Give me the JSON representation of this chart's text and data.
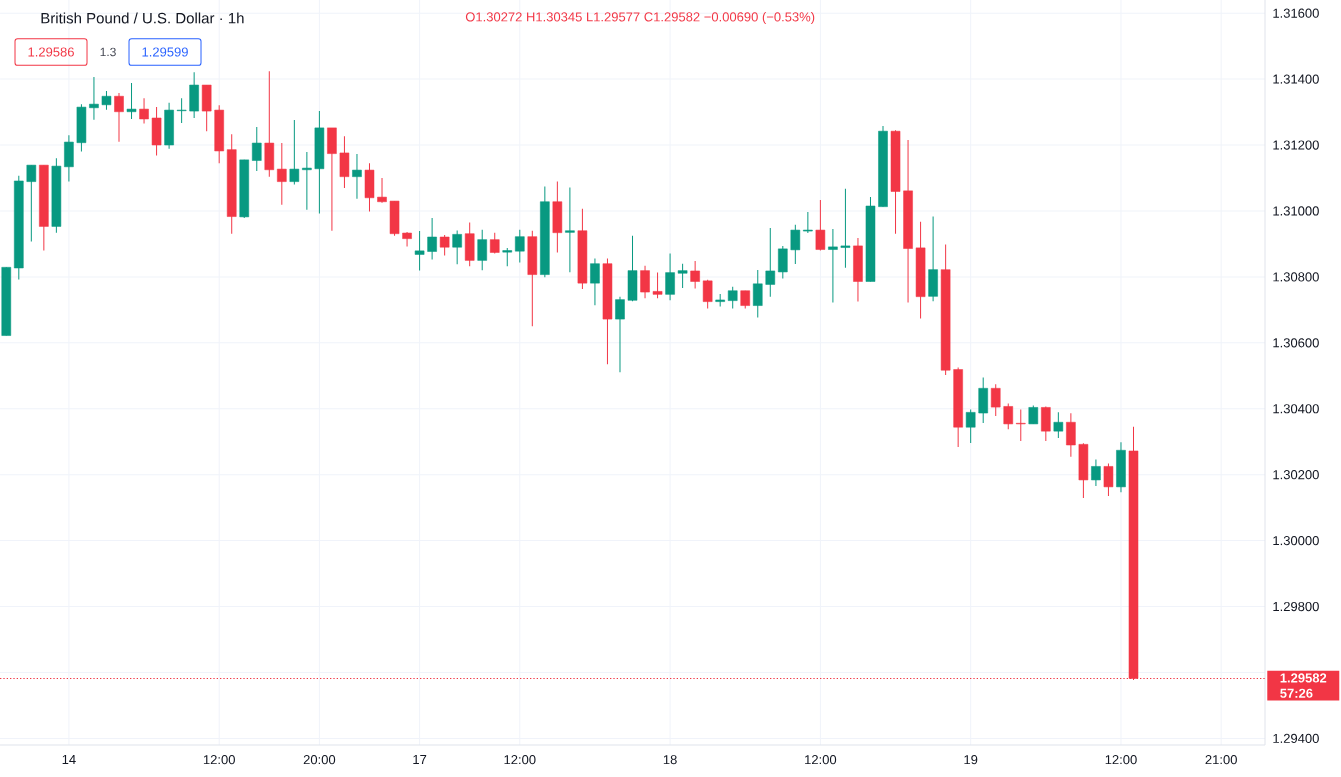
{
  "chart_data": {
    "type": "candlestick",
    "title": "British Pound / U.S. Dollar · 1h",
    "annotations": [
      "O1.30272 H1.30345 L1.29577 C1.29582 −0.00690 (−0.53%)",
      "1.29586",
      "1.3",
      "1.29599",
      "57:26"
    ],
    "categories": [
      null,
      null,
      null,
      null,
      null,
      "14",
      null,
      null,
      null,
      null,
      null,
      null,
      null,
      null,
      null,
      null,
      null,
      "12:00",
      null,
      null,
      null,
      null,
      null,
      null,
      null,
      "20:00",
      null,
      null,
      null,
      null,
      null,
      null,
      null,
      "17",
      null,
      null,
      null,
      null,
      null,
      null,
      null,
      "12:00",
      null,
      null,
      null,
      null,
      null,
      null,
      null,
      null,
      null,
      null,
      null,
      "18",
      null,
      null,
      null,
      null,
      null,
      null,
      null,
      null,
      null,
      null,
      null,
      "12:00",
      null,
      null,
      null,
      null,
      null,
      null,
      null,
      null,
      null,
      null,
      null,
      "19",
      null,
      null,
      null,
      null,
      null,
      null,
      null,
      null,
      null,
      null,
      null,
      "12:00",
      null,
      null,
      null,
      null,
      null,
      null,
      null,
      "21:00",
      null,
      null,
      null
    ],
    "ohlc": [
      [
        1.30622,
        1.30829,
        1.30622,
        1.30829
      ],
      [
        1.30827,
        1.31107,
        1.30792,
        1.31091
      ],
      [
        1.31089,
        1.31139,
        1.30907,
        1.31139
      ],
      [
        1.31139,
        1.31139,
        1.3088,
        1.30953
      ],
      [
        1.30953,
        1.3116,
        1.30934,
        1.31136
      ],
      [
        1.31134,
        1.3123,
        1.31089,
        1.31209
      ],
      [
        1.31207,
        1.31324,
        1.3118,
        1.31315
      ],
      [
        1.31313,
        1.31406,
        1.31277,
        1.31324
      ],
      [
        1.31322,
        1.31364,
        1.31307,
        1.31348
      ],
      [
        1.31348,
        1.31358,
        1.3121,
        1.31301
      ],
      [
        1.31301,
        1.31388,
        1.31279,
        1.31309
      ],
      [
        1.31309,
        1.31342,
        1.31265,
        1.31279
      ],
      [
        1.31282,
        1.31315,
        1.31168,
        1.312
      ],
      [
        1.312,
        1.31328,
        1.31189,
        1.31306
      ],
      [
        1.31304,
        1.31342,
        1.31267,
        1.31306
      ],
      [
        1.31303,
        1.31421,
        1.31282,
        1.31382
      ],
      [
        1.31382,
        1.31382,
        1.31242,
        1.31303
      ],
      [
        1.31306,
        1.31321,
        1.31145,
        1.31182
      ],
      [
        1.31186,
        1.31233,
        1.30931,
        1.30983
      ],
      [
        1.30982,
        1.31155,
        1.30979,
        1.31155
      ],
      [
        1.31153,
        1.31255,
        1.31121,
        1.31206
      ],
      [
        1.31206,
        1.31424,
        1.31104,
        1.31125
      ],
      [
        1.31127,
        1.31206,
        1.31019,
        1.31089
      ],
      [
        1.31089,
        1.31276,
        1.3108,
        1.31127
      ],
      [
        1.31125,
        1.31179,
        1.31004,
        1.3113
      ],
      [
        1.31128,
        1.31303,
        1.30992,
        1.31252
      ],
      [
        1.31252,
        1.31252,
        1.3094,
        1.31174
      ],
      [
        1.31176,
        1.31227,
        1.3107,
        1.31104
      ],
      [
        1.31104,
        1.31173,
        1.31037,
        1.31124
      ],
      [
        1.31124,
        1.31145,
        1.30998,
        1.3104
      ],
      [
        1.31042,
        1.311,
        1.31025,
        1.31028
      ],
      [
        1.3103,
        1.3103,
        1.30925,
        1.30931
      ],
      [
        1.30933,
        1.30936,
        1.30892,
        1.30916
      ],
      [
        1.30868,
        1.30939,
        1.30819,
        1.30879
      ],
      [
        1.30877,
        1.30979,
        1.30853,
        1.30921
      ],
      [
        1.30921,
        1.30927,
        1.30865,
        1.3089
      ],
      [
        1.3089,
        1.30941,
        1.30838,
        1.30929
      ],
      [
        1.30931,
        1.30965,
        1.30832,
        1.3085
      ],
      [
        1.3085,
        1.30943,
        1.3082,
        1.30913
      ],
      [
        1.30913,
        1.30934,
        1.30871,
        1.30874
      ],
      [
        1.30875,
        1.30888,
        1.30832,
        1.3088
      ],
      [
        1.30878,
        1.30943,
        1.30844,
        1.30922
      ],
      [
        1.30922,
        1.3094,
        1.3065,
        1.30807
      ],
      [
        1.30807,
        1.31074,
        1.30799,
        1.31028
      ],
      [
        1.31028,
        1.31089,
        1.30874,
        1.30934
      ],
      [
        1.30935,
        1.31071,
        1.30814,
        1.3094
      ],
      [
        1.3094,
        1.31007,
        1.30763,
        1.30781
      ],
      [
        1.30781,
        1.30856,
        1.30714,
        1.3084
      ],
      [
        1.3084,
        1.30856,
        1.30535,
        1.30672
      ],
      [
        1.30672,
        1.3074,
        1.30511,
        1.30731
      ],
      [
        1.30729,
        1.30925,
        1.30726,
        1.30819
      ],
      [
        1.30819,
        1.30834,
        1.30735,
        1.30754
      ],
      [
        1.30756,
        1.30813,
        1.30735,
        1.30747
      ],
      [
        1.30747,
        1.30871,
        1.30729,
        1.30813
      ],
      [
        1.30811,
        1.3084,
        1.30766,
        1.30819
      ],
      [
        1.30818,
        1.30848,
        1.30765,
        1.30786
      ],
      [
        1.30788,
        1.30791,
        1.30704,
        1.30725
      ],
      [
        1.30725,
        1.30748,
        1.3071,
        1.3073
      ],
      [
        1.30728,
        1.3077,
        1.30704,
        1.30758
      ],
      [
        1.30758,
        1.30758,
        1.30704,
        1.30713
      ],
      [
        1.30713,
        1.30821,
        1.30677,
        1.30779
      ],
      [
        1.30777,
        1.30948,
        1.3074,
        1.30818
      ],
      [
        1.30815,
        1.30894,
        1.30795,
        1.30885
      ],
      [
        1.30882,
        1.30958,
        1.30839,
        1.30942
      ],
      [
        1.30939,
        1.30997,
        1.30933,
        1.30942
      ],
      [
        1.30942,
        1.31033,
        1.3088,
        1.30883
      ],
      [
        1.30883,
        1.30945,
        1.30722,
        1.30891
      ],
      [
        1.30889,
        1.31067,
        1.30828,
        1.30894
      ],
      [
        1.30894,
        1.30918,
        1.30725,
        1.30786
      ],
      [
        1.30786,
        1.31042,
        1.30786,
        1.31015
      ],
      [
        1.31013,
        1.31258,
        1.31013,
        1.31242
      ],
      [
        1.31242,
        1.31245,
        1.30931,
        1.31059
      ],
      [
        1.31061,
        1.31215,
        1.30722,
        1.30886
      ],
      [
        1.30888,
        1.30967,
        1.30674,
        1.3074
      ],
      [
        1.30741,
        1.30983,
        1.30726,
        1.30822
      ],
      [
        1.30822,
        1.30898,
        1.30502,
        1.30517
      ],
      [
        1.30519,
        1.30525,
        1.30284,
        1.30344
      ],
      [
        1.30344,
        1.30398,
        1.30296,
        1.30389
      ],
      [
        1.30387,
        1.30495,
        1.30357,
        1.30462
      ],
      [
        1.30462,
        1.30474,
        1.30378,
        1.30405
      ],
      [
        1.30407,
        1.30416,
        1.30338,
        1.30354
      ],
      [
        1.30356,
        1.30398,
        1.30302,
        1.30354
      ],
      [
        1.30354,
        1.3041,
        1.30354,
        1.30404
      ],
      [
        1.30404,
        1.30407,
        1.30302,
        1.30332
      ],
      [
        1.30332,
        1.30389,
        1.30311,
        1.30359
      ],
      [
        1.30359,
        1.30386,
        1.30254,
        1.3029
      ],
      [
        1.30292,
        1.30295,
        1.30129,
        1.30184
      ],
      [
        1.30184,
        1.30246,
        1.30166,
        1.30225
      ],
      [
        1.30225,
        1.30234,
        1.30135,
        1.30163
      ],
      [
        1.30163,
        1.30298,
        1.30147,
        1.30274
      ],
      [
        1.30272,
        1.30345,
        1.29577,
        1.29582
      ],
      null,
      null,
      null,
      null,
      null,
      null,
      null,
      null,
      null,
      null
    ],
    "colors": [
      "#089981",
      "#089981",
      "#089981",
      "#f23645",
      "#089981",
      "#089981",
      "#089981",
      "#089981",
      "#089981",
      "#f23645",
      "#089981",
      "#f23645",
      "#f23645",
      "#089981",
      "#089981",
      "#089981",
      "#f23645",
      "#f23645",
      "#f23645",
      "#089981",
      "#089981",
      "#f23645",
      "#f23645",
      "#089981",
      "#089981",
      "#089981",
      "#f23645",
      "#f23645",
      "#089981",
      "#f23645",
      "#f23645",
      "#f23645",
      "#f23645",
      "#089981",
      "#089981",
      "#f23645",
      "#089981",
      "#f23645",
      "#089981",
      "#f23645",
      "#089981",
      "#089981",
      "#f23645",
      "#089981",
      "#f23645",
      "#089981",
      "#f23645",
      "#089981",
      "#f23645",
      "#089981",
      "#089981",
      "#f23645",
      "#f23645",
      "#089981",
      "#089981",
      "#f23645",
      "#f23645",
      "#089981",
      "#089981",
      "#f23645",
      "#089981",
      "#089981",
      "#089981",
      "#089981",
      "#089981",
      "#f23645",
      "#089981",
      "#089981",
      "#f23645",
      "#089981",
      "#089981",
      "#f23645",
      "#f23645",
      "#f23645",
      "#089981",
      "#f23645",
      "#f23645",
      "#089981",
      "#089981",
      "#f23645",
      "#f23645",
      "#f23645",
      "#089981",
      "#f23645",
      "#089981",
      "#f23645",
      "#f23645",
      "#089981",
      "#f23645",
      "#089981",
      "#f23645",
      null,
      null,
      null,
      null,
      null,
      null,
      null,
      null,
      null,
      null
    ],
    "ylim": [
      1.2938,
      1.3164
    ],
    "yticks": [
      {
        "value": 1.294,
        "label": "1.29400"
      },
      {
        "value": 1.296,
        "label": null
      },
      {
        "value": 1.298,
        "label": "1.29800"
      },
      {
        "value": 1.3,
        "label": "1.30000"
      },
      {
        "value": 1.302,
        "label": "1.30200"
      },
      {
        "value": 1.304,
        "label": "1.30400"
      },
      {
        "value": 1.306,
        "label": "1.30600"
      },
      {
        "value": 1.308,
        "label": "1.30800"
      },
      {
        "value": 1.31,
        "label": "1.31000"
      },
      {
        "value": 1.312,
        "label": "1.31200"
      },
      {
        "value": 1.314,
        "label": "1.31400"
      },
      {
        "value": 1.316,
        "label": "1.31600"
      }
    ],
    "grid": true,
    "ref_lines": [
      {
        "axis": "y",
        "value": 1.29582,
        "label": "1.29582",
        "color": "#f23645",
        "line_style": "dotted"
      }
    ]
  }
}
